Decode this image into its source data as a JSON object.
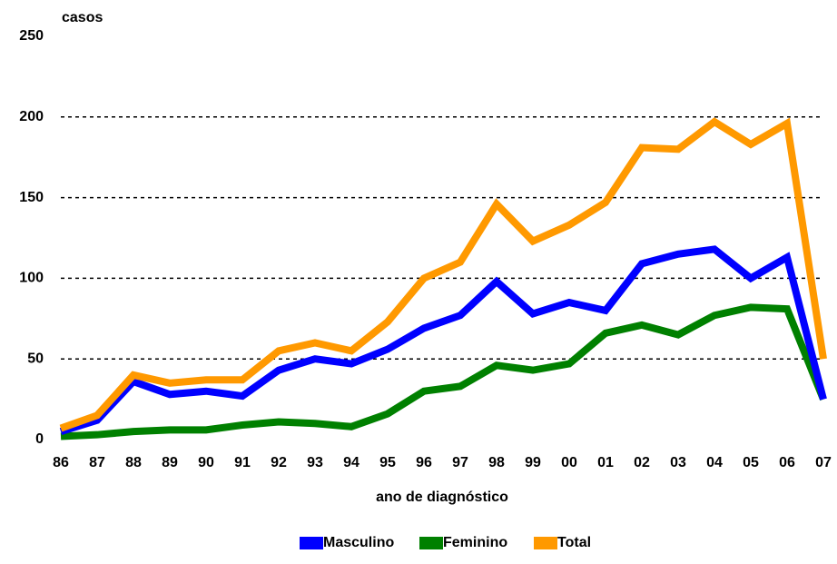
{
  "chart_data": {
    "type": "line",
    "y_label": "casos",
    "x_label": "ano de diagnóstico",
    "categories": [
      "86",
      "87",
      "88",
      "89",
      "90",
      "91",
      "92",
      "93",
      "94",
      "95",
      "96",
      "97",
      "98",
      "99",
      "00",
      "01",
      "02",
      "03",
      "04",
      "05",
      "06",
      "07"
    ],
    "series": [
      {
        "name": "Masculino",
        "color": "#0000ff",
        "values": [
          5,
          12,
          36,
          28,
          30,
          27,
          43,
          50,
          47,
          56,
          69,
          77,
          98,
          78,
          85,
          80,
          109,
          115,
          118,
          100,
          113,
          25
        ]
      },
      {
        "name": "Feminino",
        "color": "#008000",
        "values": [
          2,
          3,
          5,
          6,
          6,
          9,
          11,
          10,
          8,
          16,
          30,
          33,
          46,
          43,
          47,
          66,
          71,
          65,
          77,
          82,
          81,
          25
        ]
      },
      {
        "name": "Total",
        "color": "#ff9900",
        "values": [
          7,
          15,
          40,
          35,
          37,
          37,
          55,
          60,
          55,
          73,
          100,
          110,
          146,
          123,
          133,
          147,
          181,
          180,
          197,
          183,
          196,
          50
        ]
      }
    ],
    "ylim": [
      0,
      250
    ],
    "yticks": [
      0,
      50,
      100,
      150,
      200,
      250
    ],
    "grid": true
  }
}
